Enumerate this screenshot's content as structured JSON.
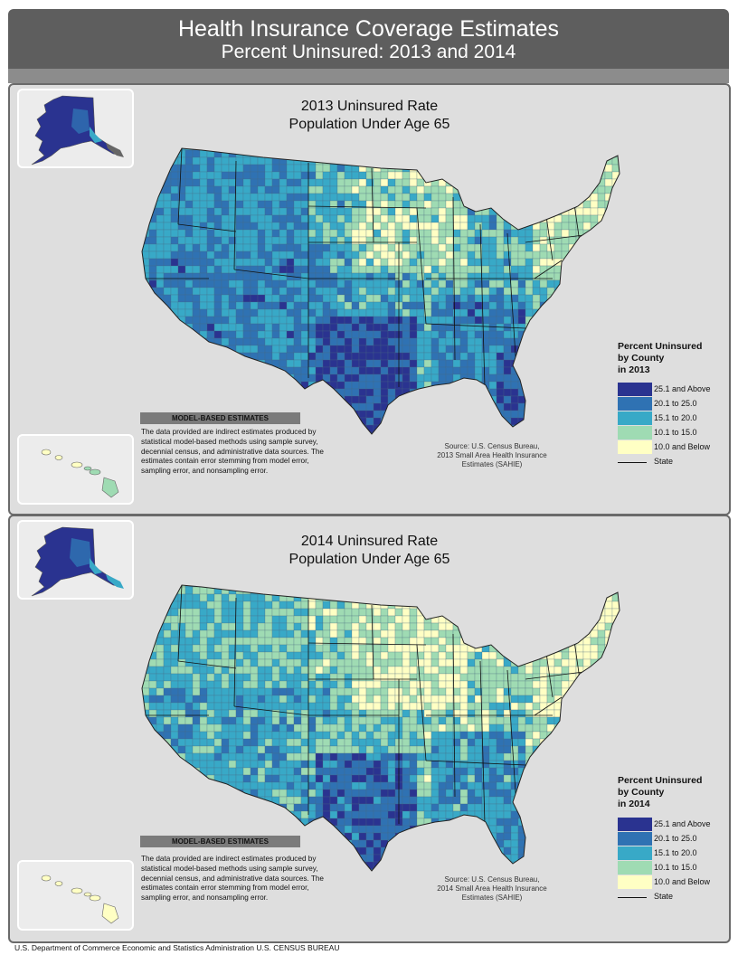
{
  "header": {
    "title": "Health Insurance Coverage Estimates",
    "subtitle": "Percent Uninsured: 2013 and 2014"
  },
  "colors": {
    "c1": "#2a3390",
    "c2": "#2f72b3",
    "c3": "#38a9c7",
    "c4": "#9fdbb3",
    "c5": "#ffffc4",
    "panel": "#dedede",
    "header": "#5e5e5e"
  },
  "panels": [
    {
      "map_title_line1": "2013 Uninsured Rate",
      "map_title_line2": "Population Under Age 65",
      "mbe_title": "MODEL-BASED ESTIMATES",
      "mbe_text": "The data provided are indirect estimates produced by statistical model-based methods using sample survey, decennial census, and administrative data sources. The estimates contain error stemming from model error, sampling error, and nonsampling error.",
      "source_line1": "Source: U.S. Census Bureau,",
      "source_line2": "2013 Small Area Health Insurance",
      "source_line3": "Estimates (SAHIE)",
      "legend_title_line1": "Percent Uninsured",
      "legend_title_line2": "by County",
      "legend_title_line3": "in 2013",
      "legend_items": [
        "25.1 and Above",
        "20.1 to 25.0",
        "15.1 to 20.0",
        "10.1 to 15.0",
        "10.0 and Below"
      ],
      "legend_state": "State"
    },
    {
      "map_title_line1": "2014 Uninsured Rate",
      "map_title_line2": "Population Under Age 65",
      "mbe_title": "MODEL-BASED ESTIMATES",
      "mbe_text": "The data provided are indirect estimates produced by statistical model-based methods using sample survey, decennial census, and administrative data sources. The estimates contain error stemming from model error, sampling error, and nonsampling error.",
      "source_line1": "Source: U.S. Census Bureau,",
      "source_line2": "2014 Small Area Health Insurance",
      "source_line3": "Estimates (SAHIE)",
      "legend_title_line1": "Percent Uninsured",
      "legend_title_line2": "by County",
      "legend_title_line3": "in 2014",
      "legend_items": [
        "25.1 and Above",
        "20.1 to 25.0",
        "15.1 to 20.0",
        "10.1 to 15.0",
        "10.0 and Below"
      ],
      "legend_state": "State"
    }
  ],
  "footer": "U.S. Department of Commerce  Economic and Statistics Administration  U.S. CENSUS BUREAU"
}
